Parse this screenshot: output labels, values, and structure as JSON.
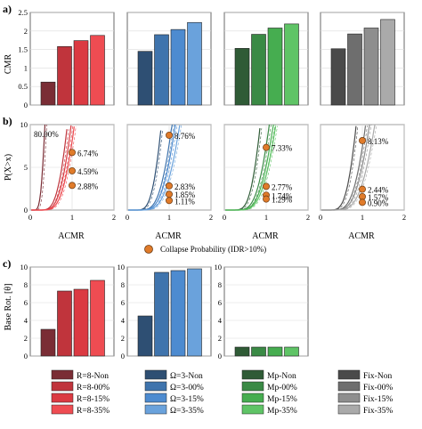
{
  "figure": {
    "panel_labels": [
      "a)",
      "b)",
      "c)"
    ],
    "collapse_legend": "Collapse Probability (IDR>10%)",
    "marker_color": "#e07b2a"
  },
  "chart_data": [
    {
      "id": "a",
      "type": "bar",
      "ylabel": "CMR",
      "ylim": [
        0,
        2.5
      ],
      "yticks": [
        0,
        0.5,
        1,
        1.5,
        2,
        2.5
      ],
      "grid": true,
      "groups": [
        {
          "name": "R",
          "labels": [
            "R=8-Non",
            "R=8-00%",
            "R=8-15%",
            "R=8-35%"
          ],
          "colors": [
            "#7a2d35",
            "#c0343c",
            "#db3a42",
            "#ef4c52"
          ],
          "values": [
            0.62,
            1.58,
            1.74,
            1.88
          ]
        },
        {
          "name": "Omega",
          "labels": [
            "Ω=3-Non",
            "Ω=3-00%",
            "Ω=3-15%",
            "Ω=3-35%"
          ],
          "colors": [
            "#2e4f73",
            "#3f74ad",
            "#4d8bd0",
            "#6aa2dc"
          ],
          "values": [
            1.45,
            1.9,
            2.04,
            2.23
          ]
        },
        {
          "name": "Mp",
          "labels": [
            "Mp-Non",
            "Mp-00%",
            "Mp-15%",
            "Mp-35%"
          ],
          "colors": [
            "#2f5b36",
            "#3a8a45",
            "#46ad50",
            "#5fc466"
          ],
          "values": [
            1.53,
            1.91,
            2.08,
            2.19
          ]
        },
        {
          "name": "Fix",
          "labels": [
            "Fix-Non",
            "Fix-00%",
            "Fix-15%",
            "Fix-35%"
          ],
          "colors": [
            "#4a4a4a",
            "#6e6e6e",
            "#8e8e8e",
            "#aaaaaa"
          ],
          "values": [
            1.52,
            1.92,
            2.08,
            2.31
          ]
        }
      ]
    },
    {
      "id": "b",
      "type": "line",
      "ylabel": "P(X>x)",
      "xlabel": "ACMR",
      "xlim": [
        0,
        2
      ],
      "ylim": [
        0,
        10
      ],
      "xticks": [
        0,
        1,
        2
      ],
      "yticks": [
        0,
        5,
        10
      ],
      "grid": true,
      "panels": [
        {
          "group": "R",
          "medians": [
            0.62,
            1.58,
            1.74,
            1.88
          ],
          "points": [
            80.0,
            6.74,
            4.59,
            2.88
          ],
          "labels": [
            "80.00%",
            "6.74%",
            "4.59%",
            "2.88%"
          ]
        },
        {
          "group": "Omega",
          "medians": [
            1.45,
            1.9,
            2.04,
            2.23
          ],
          "points": [
            8.76,
            2.83,
            1.85,
            1.11
          ],
          "labels": [
            "8.76%",
            "2.83%",
            "1.85%",
            "1.11%"
          ]
        },
        {
          "group": "Mp",
          "medians": [
            1.53,
            1.91,
            2.08,
            2.19
          ],
          "points": [
            7.33,
            2.77,
            1.74,
            1.29
          ],
          "labels": [
            "7.33%",
            "2.77%",
            "1.74%",
            "1.29%"
          ]
        },
        {
          "group": "Fix",
          "medians": [
            1.52,
            1.92,
            2.08,
            2.31
          ],
          "points": [
            8.13,
            2.44,
            1.57,
            0.9
          ],
          "labels": [
            "8.13%",
            "2.44%",
            "1.57%",
            "0.90%"
          ]
        }
      ]
    },
    {
      "id": "c",
      "type": "bar",
      "ylabel": "Base Rot. [θ]",
      "ylim": [
        0,
        10
      ],
      "yticks": [
        0,
        2,
        4,
        6,
        8,
        10
      ],
      "grid": true,
      "groups": [
        {
          "name": "R",
          "values": [
            3.0,
            7.3,
            7.5,
            8.5
          ]
        },
        {
          "name": "Omega",
          "values": [
            4.5,
            9.4,
            9.6,
            9.8
          ]
        },
        {
          "name": "Mp",
          "values": [
            1.0,
            1.0,
            1.0,
            1.0
          ]
        }
      ]
    }
  ]
}
